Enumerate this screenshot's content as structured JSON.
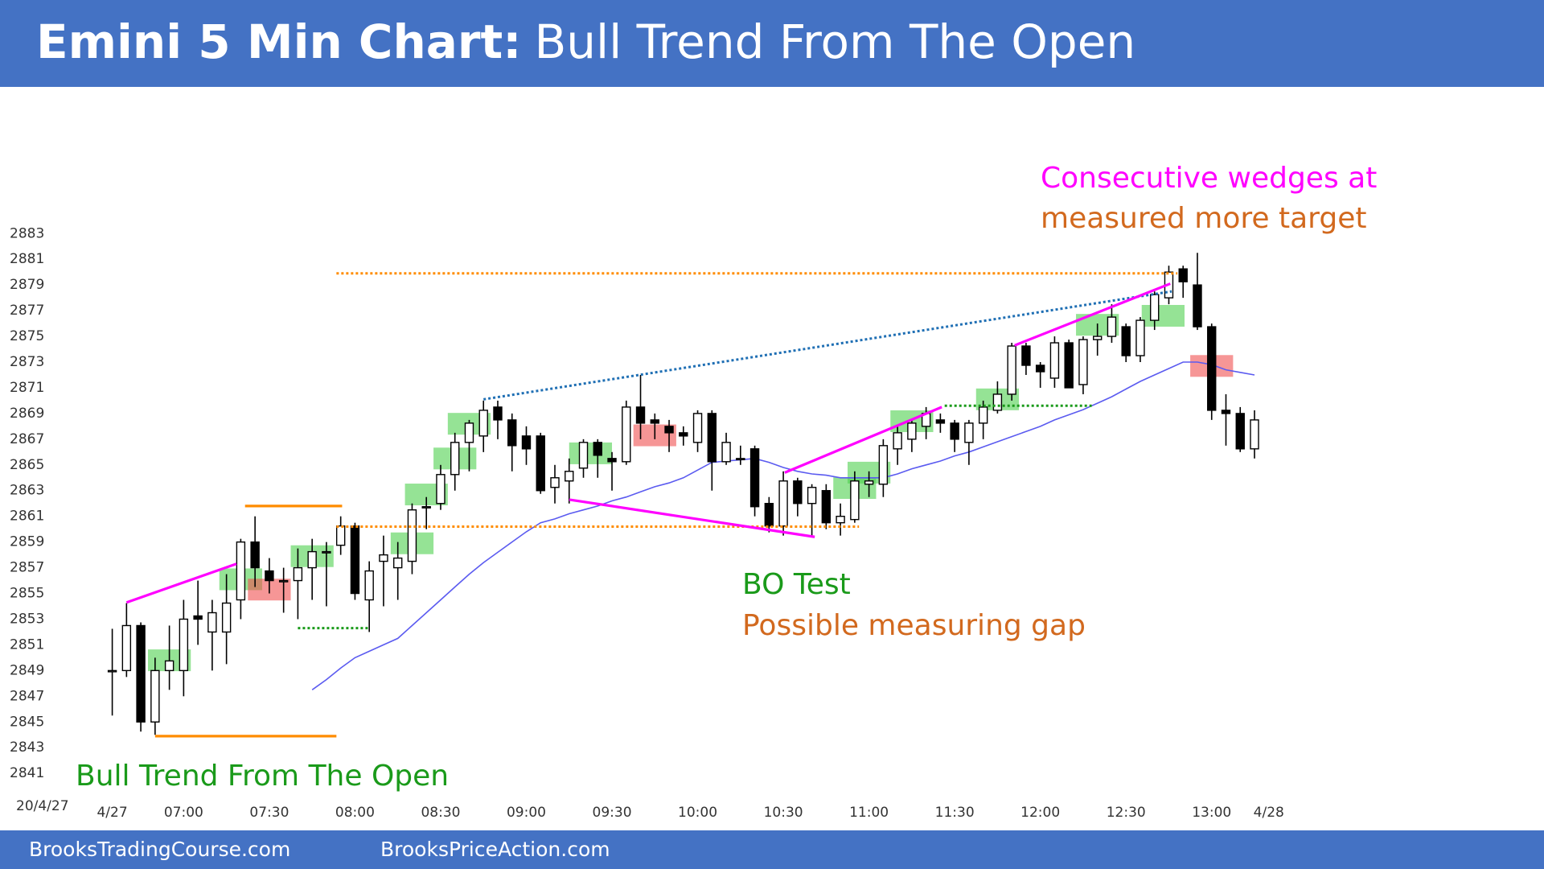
{
  "chart_data": {
    "type": "candlestick",
    "title": "Emini 5 Min Chart:",
    "subtitle": "Bull Trend From The Open",
    "date_label": "20/4/27",
    "footer": [
      "BrooksTradingCourse.com",
      "BrooksPriceAction.com"
    ],
    "up_color": "#ffffff",
    "down_color": "#000000",
    "open": [
      2849,
      2849,
      2852.5,
      2845,
      2849,
      2849,
      2853.25,
      2852,
      2852,
      2854.5,
      2859,
      2856.75,
      2856,
      2856,
      2857,
      2858.25,
      2858.75,
      2860.25,
      2854.5,
      2857.5,
      2857,
      2857.5,
      2861.75,
      2862,
      2864.25,
      2866.75,
      2867.25,
      2869.5,
      2868.5,
      2867.25,
      2867.25,
      2863.25,
      2863.75,
      2864.75,
      2866.75,
      2865.5,
      2865.25,
      2869.5,
      2868.5,
      2868,
      2867.5,
      2866.75,
      2869,
      2865.25,
      2865.5,
      2866.25,
      2862,
      2860.25,
      2863.75,
      2862,
      2863,
      2860.5,
      2860.75,
      2863.5,
      2863.5,
      2866.25,
      2867,
      2868,
      2868.5,
      2868.25,
      2866.75,
      2868.25,
      2869.25,
      2870.5,
      2874.25,
      2872.75,
      2871.75,
      2874.5,
      2871.25,
      2874.75,
      2875,
      2875.75,
      2873.5,
      2876.25,
      2878,
      2880.25,
      2879,
      2875.75,
      2869.25,
      2869,
      2866.25
    ],
    "high": [
      2852.25,
      2854.25,
      2852.75,
      2850,
      2852.5,
      2854.5,
      2856,
      2854.5,
      2856.5,
      2859.25,
      2861,
      2857.75,
      2857,
      2858.5,
      2859.25,
      2859,
      2861,
      2860.5,
      2857.5,
      2859.5,
      2859,
      2862,
      2862.5,
      2865,
      2867.5,
      2868.5,
      2870,
      2870,
      2869,
      2868,
      2867.5,
      2865,
      2865.5,
      2867,
      2867,
      2866,
      2870,
      2872,
      2869,
      2868.5,
      2868,
      2869.25,
      2869.25,
      2867.5,
      2866.5,
      2866.5,
      2862.5,
      2864.5,
      2864,
      2863.5,
      2863.5,
      2862,
      2864.5,
      2864.5,
      2867,
      2868,
      2868.5,
      2869.5,
      2869,
      2868.5,
      2868.5,
      2870,
      2871.5,
      2874.5,
      2874.5,
      2873,
      2875,
      2874.75,
      2875,
      2876,
      2877.5,
      2876,
      2876.5,
      2878.5,
      2880.5,
      2880.5,
      2881.5,
      2876,
      2870.5,
      2869.5,
      2869.25
    ],
    "low": [
      2845.5,
      2848.5,
      2844.25,
      2844,
      2847.5,
      2847,
      2851,
      2849,
      2849.5,
      2853,
      2855.5,
      2855,
      2853.5,
      2853,
      2854.5,
      2854,
      2858,
      2854.5,
      2852,
      2854,
      2854.5,
      2856.5,
      2860,
      2861.5,
      2863,
      2864.5,
      2866,
      2867,
      2864.5,
      2865,
      2862.75,
      2862,
      2862,
      2864,
      2864,
      2863,
      2865,
      2867,
      2867,
      2866,
      2866.5,
      2866,
      2863,
      2865,
      2865,
      2861,
      2859.75,
      2859.5,
      2861,
      2859.5,
      2860,
      2859.5,
      2860.5,
      2862.5,
      2862.5,
      2865,
      2866,
      2867,
      2867.5,
      2866,
      2865,
      2867,
      2869,
      2870,
      2872,
      2871,
      2871,
      2871,
      2870.5,
      2873.5,
      2874.5,
      2873,
      2873,
      2875.5,
      2877.5,
      2878,
      2875.5,
      2868.5,
      2866.5,
      2866,
      2865.5
    ],
    "close": [
      2849,
      2852.5,
      2845,
      2849,
      2849.75,
      2853,
      2853,
      2853.5,
      2854.25,
      2859,
      2857,
      2856,
      2856,
      2857,
      2858.25,
      2858.25,
      2860.25,
      2855,
      2856.75,
      2858,
      2857.75,
      2861.5,
      2861.75,
      2864.25,
      2866.75,
      2868.25,
      2869.25,
      2868.5,
      2866.5,
      2866.25,
      2863,
      2864,
      2864.5,
      2866.75,
      2865.75,
      2865.25,
      2869.5,
      2868.25,
      2868.25,
      2867.5,
      2867.25,
      2869,
      2865.25,
      2866.75,
      2865.5,
      2861.75,
      2860.25,
      2863.75,
      2862,
      2863.25,
      2860.5,
      2861,
      2863.75,
      2863.75,
      2866.5,
      2867.5,
      2868.25,
      2869,
      2868.25,
      2867,
      2868.25,
      2869.5,
      2870.5,
      2874.25,
      2872.75,
      2872.25,
      2874.5,
      2871,
      2874.75,
      2875,
      2876.5,
      2873.5,
      2876.25,
      2878.25,
      2880,
      2879.25,
      2875.75,
      2869.25,
      2869,
      2866.25,
      2868.5
    ],
    "ema": {
      "color": "#5b5bf0",
      "values": [
        null,
        null,
        null,
        null,
        null,
        null,
        null,
        null,
        null,
        null,
        null,
        null,
        null,
        null,
        2847.5,
        2848.3,
        2849.2,
        2850,
        2850.5,
        2851,
        2851.5,
        2852.5,
        2853.5,
        2854.5,
        2855.5,
        2856.5,
        2857.4,
        2858.2,
        2859,
        2859.8,
        2860.5,
        2860.8,
        2861.2,
        2861.5,
        2861.8,
        2862.2,
        2862.5,
        2862.9,
        2863.3,
        2863.6,
        2864,
        2864.6,
        2865.2,
        2865.3,
        2865.4,
        2865.5,
        2865.2,
        2864.8,
        2864.5,
        2864.3,
        2864.2,
        2864,
        2864,
        2864,
        2864,
        2864.3,
        2864.7,
        2865,
        2865.3,
        2865.7,
        2866,
        2866.4,
        2866.8,
        2867.2,
        2867.6,
        2868,
        2868.5,
        2868.9,
        2869.3,
        2869.8,
        2870.3,
        2870.9,
        2871.5,
        2872,
        2872.5,
        2873,
        2873,
        2872.8,
        2872.4,
        2872.2,
        2872
      ]
    },
    "xlim": [
      -2,
      84
    ],
    "xticks": [
      {
        "value": 0,
        "label": "4/27"
      },
      {
        "value": 5,
        "label": "07:00"
      },
      {
        "value": 11,
        "label": "07:30"
      },
      {
        "value": 17,
        "label": "08:00"
      },
      {
        "value": 23,
        "label": "08:30"
      },
      {
        "value": 29,
        "label": "09:00"
      },
      {
        "value": 35,
        "label": "09:30"
      },
      {
        "value": 41,
        "label": "10:00"
      },
      {
        "value": 47,
        "label": "10:30"
      },
      {
        "value": 53,
        "label": "11:00"
      },
      {
        "value": 59,
        "label": "11:30"
      },
      {
        "value": 65,
        "label": "12:00"
      },
      {
        "value": 71,
        "label": "12:30"
      },
      {
        "value": 77,
        "label": "13:00"
      },
      {
        "value": 81,
        "label": "4/28"
      }
    ],
    "ylim": [
      2840,
      2884
    ],
    "yticks": [
      2841,
      2843,
      2845,
      2847,
      2849,
      2851,
      2853,
      2855,
      2857,
      2859,
      2861,
      2863,
      2865,
      2867,
      2869,
      2871,
      2873,
      2875,
      2877,
      2879,
      2881,
      2883
    ],
    "highlights": [
      {
        "bar": 4,
        "price": 2849.8,
        "color": "#4fd14f"
      },
      {
        "bar": 9,
        "price": 2856.1,
        "color": "#4fd14f"
      },
      {
        "bar": 14,
        "price": 2857.9,
        "color": "#4fd14f"
      },
      {
        "bar": 21,
        "price": 2858.9,
        "color": "#4fd14f"
      },
      {
        "bar": 22,
        "price": 2862.7,
        "color": "#4fd14f"
      },
      {
        "bar": 24,
        "price": 2865.5,
        "color": "#4fd14f"
      },
      {
        "bar": 25,
        "price": 2868.2,
        "color": "#4fd14f"
      },
      {
        "bar": 33.5,
        "price": 2865.9,
        "color": "#4fd14f"
      },
      {
        "bar": 52,
        "price": 2863.2,
        "color": "#4fd14f"
      },
      {
        "bar": 53,
        "price": 2864.4,
        "color": "#4fd14f"
      },
      {
        "bar": 56,
        "price": 2868.4,
        "color": "#4fd14f"
      },
      {
        "bar": 62,
        "price": 2870.1,
        "color": "#4fd14f"
      },
      {
        "bar": 69,
        "price": 2875.9,
        "color": "#4fd14f"
      },
      {
        "bar": 73.6,
        "price": 2876.6,
        "color": "#4fd14f"
      },
      {
        "bar": 11,
        "price": 2855.3,
        "color": "#f05050"
      },
      {
        "bar": 38,
        "price": 2867.3,
        "color": "#f05050"
      },
      {
        "bar": 77,
        "price": 2872.7,
        "color": "#f05050"
      }
    ],
    "lines": [
      {
        "from": [
          1,
          2854.3
        ],
        "to": [
          8.7,
          2857.3
        ],
        "color": "#ff00ff",
        "style": "solid"
      },
      {
        "from": [
          9.3,
          2861.8
        ],
        "to": [
          16.1,
          2861.8
        ],
        "color": "#ff8c00",
        "style": "solid"
      },
      {
        "from": [
          3,
          2843.9
        ],
        "to": [
          15.7,
          2843.9
        ],
        "color": "#ff8c00",
        "style": "solid"
      },
      {
        "from": [
          13,
          2852.3
        ],
        "to": [
          18,
          2852.3
        ],
        "color": "#1a9a1a",
        "style": "dotted"
      },
      {
        "from": [
          15.7,
          2860.2
        ],
        "to": [
          52.3,
          2860.2
        ],
        "color": "#ff8c00",
        "style": "dotted"
      },
      {
        "from": [
          15.7,
          2879.9
        ],
        "to": [
          74.6,
          2879.9
        ],
        "color": "#ff8c00",
        "style": "dotted"
      },
      {
        "from": [
          26,
          2870.1
        ],
        "to": [
          74.2,
          2878.5
        ],
        "color": "#1f6fb4",
        "style": "dotted"
      },
      {
        "from": [
          32,
          2862.3
        ],
        "to": [
          49.2,
          2859.4
        ],
        "color": "#ff00ff",
        "style": "solid"
      },
      {
        "from": [
          47.1,
          2864.4
        ],
        "to": [
          58.1,
          2869.5
        ],
        "color": "#ff00ff",
        "style": "solid"
      },
      {
        "from": [
          58.3,
          2869.6
        ],
        "to": [
          68.6,
          2869.6
        ],
        "color": "#1a9a1a",
        "style": "dotted"
      },
      {
        "from": [
          63.2,
          2874.3
        ],
        "to": [
          74.1,
          2879.1
        ],
        "color": "#ff00ff",
        "style": "solid"
      }
    ],
    "annotations": [
      {
        "text": "Consecutive wedges at",
        "color": "#ff00ff"
      },
      {
        "text": "measured more target",
        "color": "#d2691e"
      },
      {
        "text": "BO Test",
        "color": "#1a9a1a"
      },
      {
        "text": "Possible measuring gap",
        "color": "#d2691e"
      },
      {
        "text": "Bull Trend From The Open",
        "color": "#1a9a1a"
      }
    ]
  }
}
